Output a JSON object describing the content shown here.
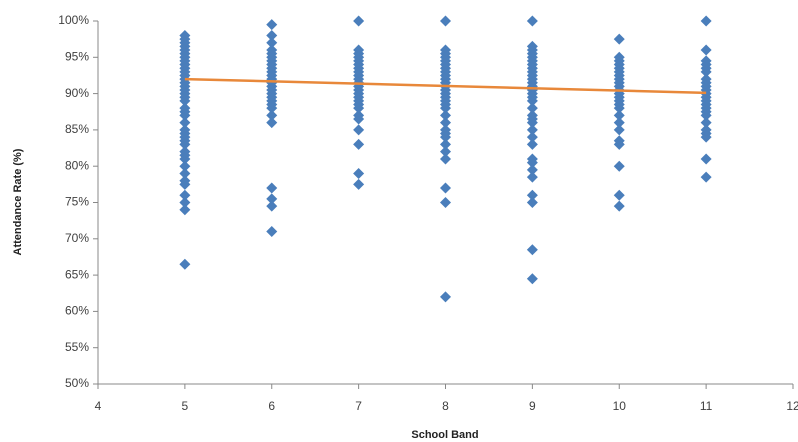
{
  "chart_data": {
    "type": "scatter",
    "x_label": "School Band",
    "y_label": "Attendance Rate (%)",
    "xlim": [
      4,
      12
    ],
    "xticks": [
      4,
      5,
      6,
      7,
      8,
      9,
      10,
      11,
      12
    ],
    "ylim": [
      50,
      100
    ],
    "yticks": [
      {
        "value": 50,
        "label": "50%"
      },
      {
        "value": 55,
        "label": "55%"
      },
      {
        "value": 60,
        "label": "60%"
      },
      {
        "value": 65,
        "label": "65%"
      },
      {
        "value": 70,
        "label": "70%"
      },
      {
        "value": 75,
        "label": "75%"
      },
      {
        "value": 80,
        "label": "80%"
      },
      {
        "value": 85,
        "label": "85%"
      },
      {
        "value": 90,
        "label": "90%"
      },
      {
        "value": 95,
        "label": "95%"
      },
      {
        "value": 100,
        "label": "100%"
      }
    ],
    "marker_color": "#4a7ebb",
    "series": [
      {
        "x": [
          5,
          5,
          5,
          5,
          5,
          5,
          5,
          5,
          5,
          5,
          5,
          5,
          5,
          5,
          5,
          5,
          5,
          5,
          5,
          5,
          5,
          5,
          5,
          5,
          5,
          5,
          5,
          5,
          5,
          5,
          5,
          5,
          5,
          5,
          5,
          5,
          5,
          5,
          5
        ],
        "values": [
          98,
          97.5,
          97,
          96.5,
          96,
          95.5,
          95,
          94.5,
          94,
          93.5,
          93,
          92.5,
          92,
          91.5,
          91,
          90.5,
          90,
          89.5,
          89,
          88,
          87.5,
          87,
          86,
          85,
          84.5,
          84,
          83.5,
          83,
          82,
          81.5,
          81,
          80,
          79,
          78,
          77.5,
          76,
          75,
          74,
          66.5
        ]
      },
      {
        "x": [
          6,
          6,
          6,
          6,
          6,
          6,
          6,
          6,
          6,
          6,
          6,
          6,
          6,
          6,
          6,
          6,
          6,
          6,
          6,
          6,
          6,
          6,
          6,
          6,
          6,
          6
        ],
        "values": [
          99.5,
          98,
          97,
          96,
          95.5,
          95,
          94.5,
          94,
          93.5,
          93,
          92.5,
          92,
          91.5,
          91,
          90.5,
          90,
          89.5,
          89,
          88.5,
          88,
          87,
          86,
          77,
          75.5,
          74.5,
          71
        ]
      },
      {
        "x": [
          7,
          7,
          7,
          7,
          7,
          7,
          7,
          7,
          7,
          7,
          7,
          7,
          7,
          7,
          7,
          7,
          7,
          7,
          7,
          7,
          7,
          7,
          7,
          7
        ],
        "values": [
          100,
          96,
          95.5,
          95,
          94.5,
          94,
          93.5,
          93,
          92.5,
          92,
          91.5,
          91,
          90.5,
          90,
          89.5,
          89,
          88.5,
          88,
          87,
          86.5,
          85,
          83,
          79,
          77.5
        ]
      },
      {
        "x": [
          8,
          8,
          8,
          8,
          8,
          8,
          8,
          8,
          8,
          8,
          8,
          8,
          8,
          8,
          8,
          8,
          8,
          8,
          8,
          8,
          8,
          8,
          8,
          8,
          8,
          8,
          8,
          8,
          8
        ],
        "values": [
          100,
          96,
          95.5,
          95,
          94.5,
          94,
          93.5,
          93,
          92.5,
          92,
          91.5,
          91,
          90.5,
          90,
          89.5,
          89,
          88.5,
          88,
          87,
          86,
          85,
          84.5,
          84,
          83,
          82,
          81,
          77,
          75,
          62
        ]
      },
      {
        "x": [
          9,
          9,
          9,
          9,
          9,
          9,
          9,
          9,
          9,
          9,
          9,
          9,
          9,
          9,
          9,
          9,
          9,
          9,
          9,
          9,
          9,
          9,
          9,
          9,
          9,
          9,
          9,
          9,
          9,
          9,
          9,
          9
        ],
        "values": [
          100,
          96.5,
          96,
          95.5,
          95,
          94.5,
          94,
          93.5,
          93,
          92.5,
          92,
          91.5,
          91,
          90.5,
          90,
          89.5,
          89,
          88,
          87,
          86.5,
          86,
          85,
          84,
          83,
          81,
          80.5,
          79.5,
          78.5,
          76,
          75,
          68.5,
          64.5
        ]
      },
      {
        "x": [
          10,
          10,
          10,
          10,
          10,
          10,
          10,
          10,
          10,
          10,
          10,
          10,
          10,
          10,
          10,
          10,
          10,
          10,
          10,
          10,
          10,
          10,
          10,
          10
        ],
        "values": [
          97.5,
          95,
          94.5,
          94,
          93.5,
          93,
          92.5,
          92,
          91.5,
          91,
          90.5,
          90,
          89.5,
          89,
          88.5,
          88,
          87,
          86,
          85,
          83.5,
          83,
          80,
          76,
          74.5
        ]
      },
      {
        "x": [
          11,
          11,
          11,
          11,
          11,
          11,
          11,
          11,
          11,
          11,
          11,
          11,
          11,
          11,
          11,
          11,
          11,
          11,
          11,
          11,
          11,
          11,
          11
        ],
        "values": [
          100,
          96,
          94.5,
          94,
          93.5,
          93,
          92,
          91.5,
          91,
          90.5,
          90,
          89.5,
          89,
          88.5,
          88,
          87.5,
          87,
          86,
          85,
          84.5,
          84,
          81,
          78.5
        ]
      }
    ],
    "trendline": {
      "x": [
        5,
        11
      ],
      "values": [
        92,
        90.1
      ],
      "color": "#e8883a"
    }
  }
}
